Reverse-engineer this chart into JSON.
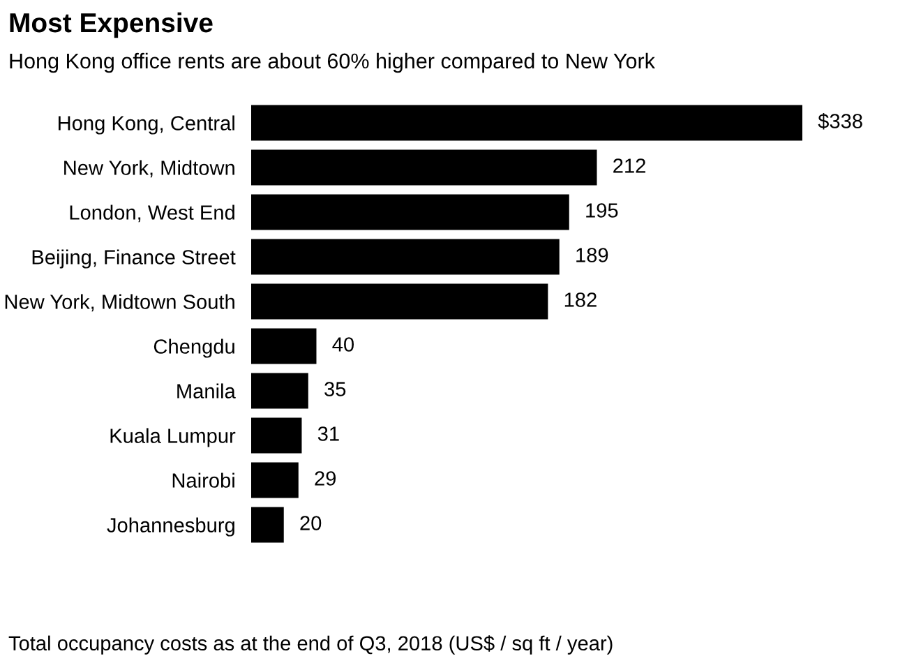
{
  "chart_data": {
    "type": "bar",
    "orientation": "horizontal",
    "title": "Most Expensive",
    "subtitle": "Hong Kong office rents are about 60% higher compared to New York",
    "categories": [
      "Hong Kong, Central",
      "New York, Midtown",
      "London, West End",
      "Beijing, Finance Street",
      "New York, Midtown South",
      "Chengdu",
      "Manila",
      "Kuala Lumpur",
      "Nairobi",
      "Johannesburg"
    ],
    "values": [
      338,
      212,
      195,
      189,
      182,
      40,
      35,
      31,
      29,
      20
    ],
    "value_labels": [
      "$338",
      "212",
      "195",
      "189",
      "182",
      "40",
      "35",
      "31",
      "29",
      "20"
    ],
    "color": "#000000",
    "grid": false,
    "legend": false,
    "annotations": [
      "Total occupancy costs as at the end of Q3, 2018 (US$ / sq ft / year)"
    ]
  }
}
